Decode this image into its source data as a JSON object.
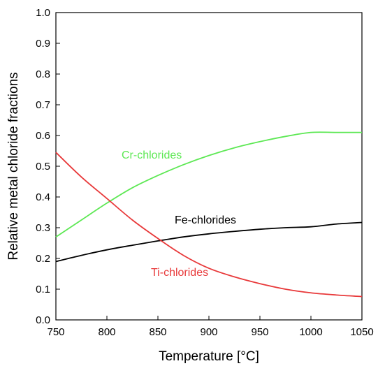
{
  "chart_data": {
    "type": "line",
    "xlabel": "Temperature [°C]",
    "ylabel": "Relative metal chloride fractions",
    "xlim": [
      750,
      1050
    ],
    "ylim": [
      0.0,
      1.0
    ],
    "xticks": [
      "750",
      "800",
      "850",
      "900",
      "950",
      "1000",
      "1050"
    ],
    "yticks": [
      "0.0",
      "0.1",
      "0.2",
      "0.3",
      "0.4",
      "0.5",
      "0.6",
      "0.7",
      "0.8",
      "0.9",
      "1.0"
    ],
    "grid": false,
    "legend": "inline",
    "series": [
      {
        "name": "Cr-chlorides",
        "color": "#5de854",
        "x": [
          750,
          775,
          800,
          825,
          850,
          875,
          900,
          925,
          950,
          975,
          1000,
          1025,
          1050
        ],
        "y": [
          0.27,
          0.325,
          0.38,
          0.43,
          0.47,
          0.505,
          0.535,
          0.56,
          0.58,
          0.597,
          0.61,
          0.61,
          0.61
        ]
      },
      {
        "name": "Fe-chlorides",
        "color": "#000000",
        "x": [
          750,
          775,
          800,
          825,
          850,
          875,
          900,
          925,
          950,
          975,
          1000,
          1025,
          1050
        ],
        "y": [
          0.19,
          0.21,
          0.228,
          0.243,
          0.257,
          0.27,
          0.28,
          0.288,
          0.295,
          0.3,
          0.303,
          0.312,
          0.317
        ]
      },
      {
        "name": "Ti-chlorides",
        "color": "#e8393a",
        "x": [
          750,
          775,
          800,
          825,
          850,
          875,
          900,
          925,
          950,
          975,
          1000,
          1025,
          1050
        ],
        "y": [
          0.545,
          0.465,
          0.395,
          0.325,
          0.265,
          0.21,
          0.168,
          0.14,
          0.118,
          0.1,
          0.088,
          0.081,
          0.076
        ]
      }
    ]
  }
}
